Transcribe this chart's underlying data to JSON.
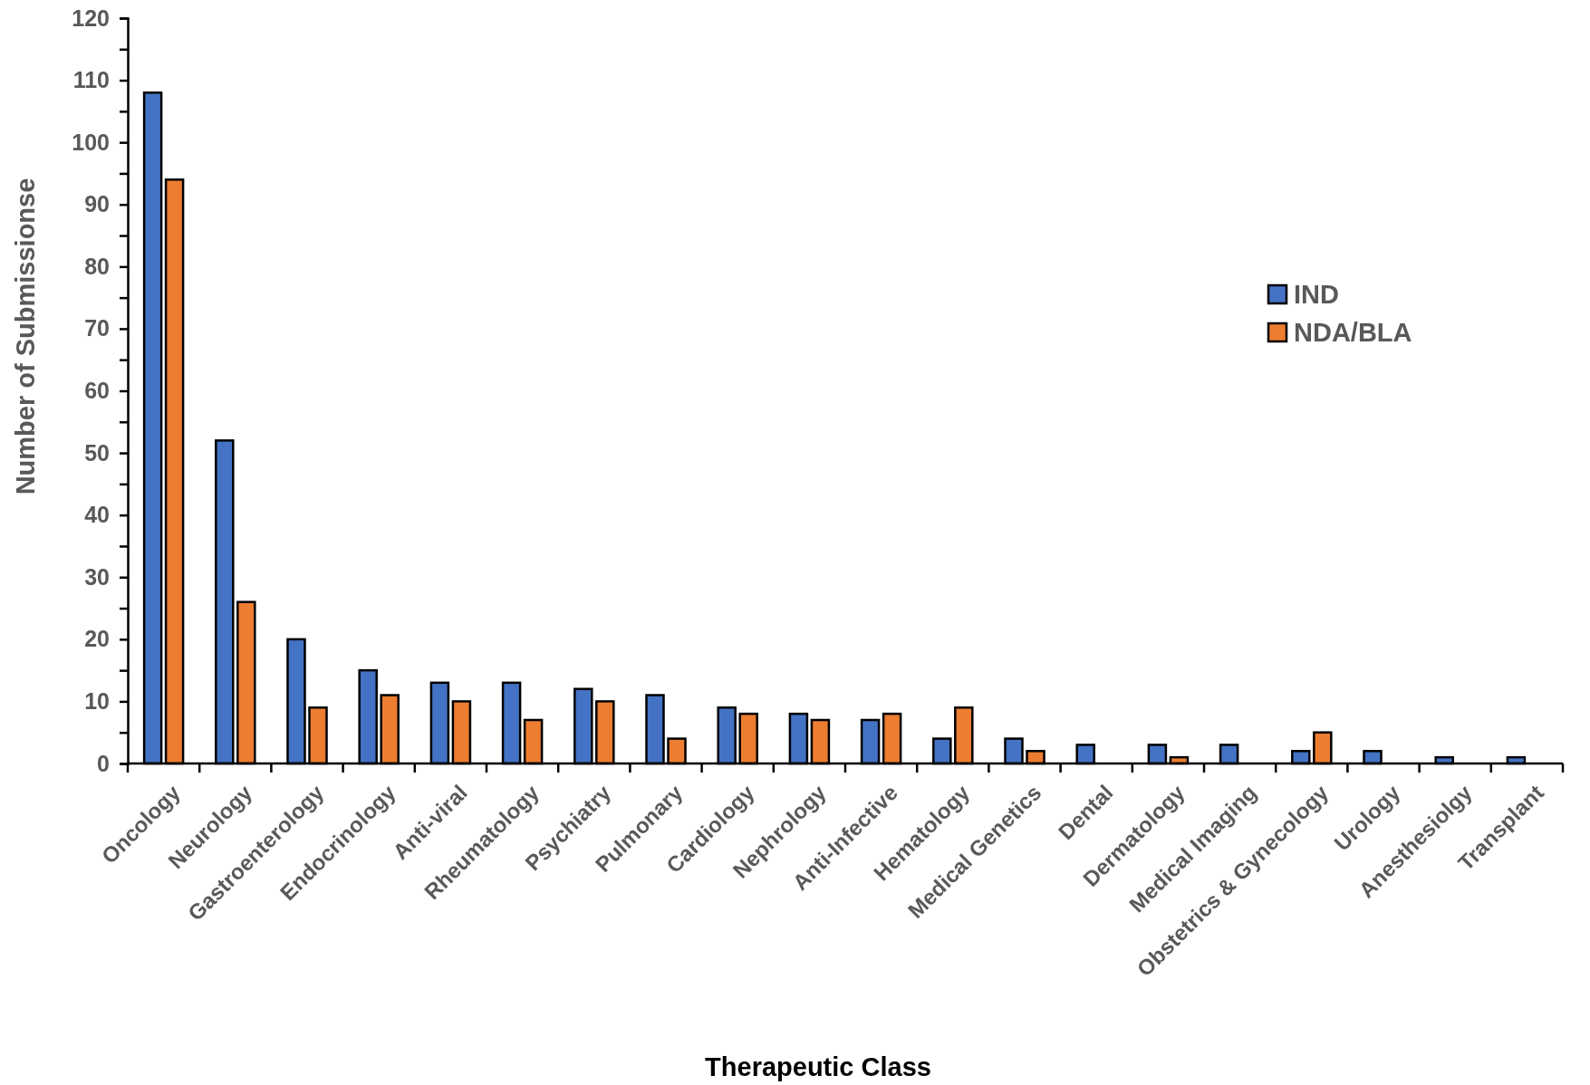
{
  "chart_data": {
    "type": "bar",
    "xlabel": "Therapeutic Class",
    "ylabel": "Number of Submissionse",
    "categories": [
      "Oncology",
      "Neurology",
      "Gastroenterology",
      "Endocrinology",
      "Anti-viral",
      "Rheumatology",
      "Psychiatry",
      "Pulmonary",
      "Cardiology",
      "Nephrology",
      "Anti-Infective",
      "Hematology",
      "Medical Genetics",
      "Dental",
      "Dermatology",
      "Medical Imaging",
      "Obstetrics & Gynecology",
      "Urology",
      "Anesthesiolgy",
      "Transplant"
    ],
    "series": [
      {
        "name": "IND",
        "color": "#4472c4",
        "values": [
          108,
          52,
          20,
          15,
          13,
          13,
          12,
          11,
          9,
          8,
          7,
          4,
          4,
          3,
          3,
          3,
          2,
          2,
          1,
          1
        ]
      },
      {
        "name": "NDA/BLA",
        "color": "#ed7d31",
        "values": [
          94,
          26,
          9,
          11,
          10,
          7,
          10,
          4,
          8,
          7,
          8,
          9,
          2,
          0,
          1,
          0,
          5,
          0,
          0,
          0
        ]
      }
    ],
    "ylim": [
      0,
      120
    ],
    "yticks": [
      0,
      {
        "value": 5,
        "label": null
      },
      10,
      {
        "value": 15,
        "label": null
      },
      20,
      {
        "value": 25,
        "label": null
      },
      30,
      {
        "value": 35,
        "label": null
      },
      40,
      {
        "value": 45,
        "label": null
      },
      50,
      {
        "value": 55,
        "label": null
      },
      60,
      {
        "value": 65,
        "label": null
      },
      70,
      {
        "value": 75,
        "label": null
      },
      80,
      {
        "value": 85,
        "label": null
      },
      90,
      {
        "value": 95,
        "label": null
      },
      100,
      {
        "value": 105,
        "label": null
      },
      110,
      {
        "value": 115,
        "label": null
      },
      120
    ],
    "grid": false,
    "legend": "right"
  }
}
